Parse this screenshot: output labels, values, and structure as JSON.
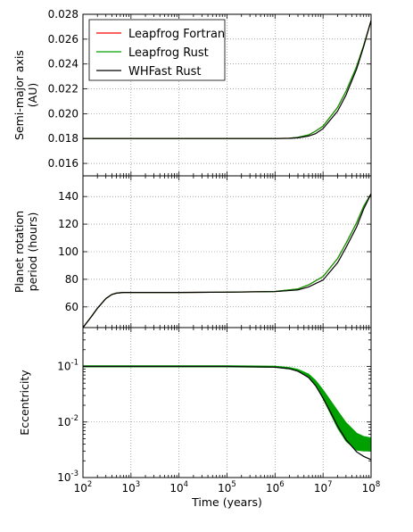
{
  "chart_data": [
    {
      "type": "line",
      "xscale": "log",
      "xlim": [
        100,
        100000000
      ],
      "ylim": [
        0.015,
        0.028
      ],
      "xlabel": "",
      "ylabel": [
        "Semi-major axis",
        "(AU)"
      ],
      "yticks": [
        0.016,
        0.018,
        0.02,
        0.022,
        0.024,
        0.026,
        0.028
      ],
      "ytick_labels": [
        "0.016",
        "0.018",
        "0.020",
        "0.022",
        "0.024",
        "0.026",
        "0.028"
      ],
      "grid": true,
      "legend_position": "upper-left",
      "series": [
        {
          "name": "Leapfrog Fortran",
          "color": "#ff0000",
          "x": [
            100,
            1000,
            10000,
            100000,
            1000000,
            2000000,
            3000000,
            5000000,
            7000000,
            10000000,
            20000000,
            30000000,
            50000000,
            70000000,
            100000000
          ],
          "y": [
            0.018,
            0.018,
            0.018,
            0.018,
            0.018,
            0.01803,
            0.0181,
            0.0183,
            0.0186,
            0.019,
            0.0205,
            0.0218,
            0.0238,
            0.0255,
            0.0275
          ]
        },
        {
          "name": "Leapfrog Rust",
          "color": "#00a000",
          "x": [
            100,
            1000,
            10000,
            100000,
            1000000,
            2000000,
            3000000,
            5000000,
            7000000,
            10000000,
            20000000,
            30000000,
            50000000,
            70000000,
            100000000
          ],
          "y": [
            0.018,
            0.018,
            0.018,
            0.018,
            0.018,
            0.01803,
            0.0181,
            0.0183,
            0.0186,
            0.019,
            0.0205,
            0.0218,
            0.0238,
            0.0255,
            0.0275
          ]
        },
        {
          "name": "WHFast Rust",
          "color": "#000000",
          "x": [
            100,
            1000,
            10000,
            100000,
            1000000,
            2000000,
            3000000,
            5000000,
            7000000,
            10000000,
            20000000,
            30000000,
            50000000,
            70000000,
            100000000
          ],
          "y": [
            0.018,
            0.018,
            0.018,
            0.018,
            0.018,
            0.01802,
            0.01806,
            0.0182,
            0.0184,
            0.0188,
            0.0202,
            0.0215,
            0.0236,
            0.0254,
            0.0275
          ]
        }
      ]
    },
    {
      "type": "line",
      "xscale": "log",
      "xlim": [
        100,
        100000000
      ],
      "ylim": [
        45,
        155
      ],
      "xlabel": "",
      "ylabel": [
        "Planet rotation",
        "period (hours)"
      ],
      "yticks": [
        60,
        80,
        100,
        120,
        140
      ],
      "ytick_labels": [
        "60",
        "80",
        "100",
        "120",
        "140"
      ],
      "grid": true,
      "series": [
        {
          "name": "Leapfrog Fortran",
          "color": "#ff0000",
          "x": [
            100,
            150,
            200,
            300,
            400,
            500,
            700,
            1000,
            10000,
            100000,
            1000000,
            3000000,
            5000000,
            10000000,
            20000000,
            30000000,
            50000000,
            70000000,
            100000000
          ],
          "y": [
            45,
            53,
            59,
            66,
            69,
            70,
            70.5,
            70.5,
            70.5,
            70.7,
            71.2,
            73,
            76,
            82,
            95,
            106,
            121,
            133,
            142
          ]
        },
        {
          "name": "Leapfrog Rust",
          "color": "#00a000",
          "x": [
            100,
            150,
            200,
            300,
            400,
            500,
            700,
            1000,
            10000,
            100000,
            1000000,
            3000000,
            5000000,
            10000000,
            20000000,
            30000000,
            50000000,
            70000000,
            100000000
          ],
          "y": [
            45,
            53,
            59,
            66,
            69,
            70,
            70.5,
            70.5,
            70.5,
            70.7,
            71.2,
            73,
            76,
            82,
            95,
            106,
            121,
            133,
            142
          ]
        },
        {
          "name": "WHFast Rust",
          "color": "#000000",
          "x": [
            100,
            150,
            200,
            300,
            400,
            500,
            700,
            1000,
            10000,
            100000,
            1000000,
            3000000,
            5000000,
            10000000,
            20000000,
            30000000,
            50000000,
            70000000,
            100000000
          ],
          "y": [
            45,
            53,
            59,
            66,
            69,
            70,
            70.5,
            70.5,
            70.5,
            70.7,
            71.1,
            72.3,
            74.5,
            79.5,
            92,
            103,
            118,
            131,
            142
          ]
        }
      ]
    },
    {
      "type": "line",
      "xscale": "log",
      "yscale": "log",
      "xlim": [
        100,
        100000000
      ],
      "ylim": [
        0.001,
        0.5
      ],
      "xlabel": "Time (years)",
      "ylabel": [
        "Eccentricity"
      ],
      "xticks": [
        100,
        1000,
        10000,
        100000,
        1000000,
        10000000,
        100000000
      ],
      "xtick_labels": [
        [
          "10",
          "2"
        ],
        [
          "10",
          "3"
        ],
        [
          "10",
          "4"
        ],
        [
          "10",
          "5"
        ],
        [
          "10",
          "6"
        ],
        [
          "10",
          "7"
        ],
        [
          "10",
          "8"
        ]
      ],
      "yticks": [
        0.001,
        0.01,
        0.1
      ],
      "ytick_labels": [
        [
          "10",
          "-3"
        ],
        [
          "10",
          "-2"
        ],
        [
          "10",
          "-1"
        ]
      ],
      "grid": true,
      "series": [
        {
          "name": "Leapfrog Fortran",
          "color": "#ff0000",
          "x": [
            100,
            1000,
            10000,
            100000,
            1000000,
            2000000,
            3000000,
            5000000,
            7000000,
            10000000,
            15000000,
            20000000,
            30000000,
            50000000,
            70000000,
            100000000
          ],
          "y": [
            0.1,
            0.1,
            0.1,
            0.1,
            0.098,
            0.093,
            0.085,
            0.068,
            0.05,
            0.031,
            0.017,
            0.011,
            0.0065,
            0.0045,
            0.0042,
            0.004
          ]
        },
        {
          "name": "Leapfrog Rust",
          "color": "#00a000",
          "band": true,
          "x": [
            100,
            1000,
            10000,
            100000,
            1000000,
            2000000,
            3000000,
            5000000,
            7000000,
            10000000,
            15000000,
            20000000,
            30000000,
            50000000,
            70000000,
            100000000
          ],
          "y_low": [
            0.098,
            0.098,
            0.098,
            0.098,
            0.096,
            0.09,
            0.082,
            0.064,
            0.046,
            0.026,
            0.013,
            0.0078,
            0.0045,
            0.0031,
            0.003,
            0.003
          ],
          "y_high": [
            0.103,
            0.103,
            0.103,
            0.103,
            0.101,
            0.096,
            0.089,
            0.073,
            0.056,
            0.038,
            0.023,
            0.016,
            0.0098,
            0.0063,
            0.0055,
            0.0052
          ]
        },
        {
          "name": "WHFast Rust",
          "color": "#000000",
          "x": [
            100,
            1000,
            10000,
            100000,
            1000000,
            2000000,
            3000000,
            5000000,
            7000000,
            10000000,
            15000000,
            20000000,
            30000000,
            50000000,
            70000000,
            100000000
          ],
          "y": [
            0.1,
            0.1,
            0.1,
            0.1,
            0.097,
            0.091,
            0.082,
            0.063,
            0.045,
            0.027,
            0.014,
            0.0085,
            0.0048,
            0.0029,
            0.0024,
            0.0021
          ]
        }
      ]
    }
  ]
}
